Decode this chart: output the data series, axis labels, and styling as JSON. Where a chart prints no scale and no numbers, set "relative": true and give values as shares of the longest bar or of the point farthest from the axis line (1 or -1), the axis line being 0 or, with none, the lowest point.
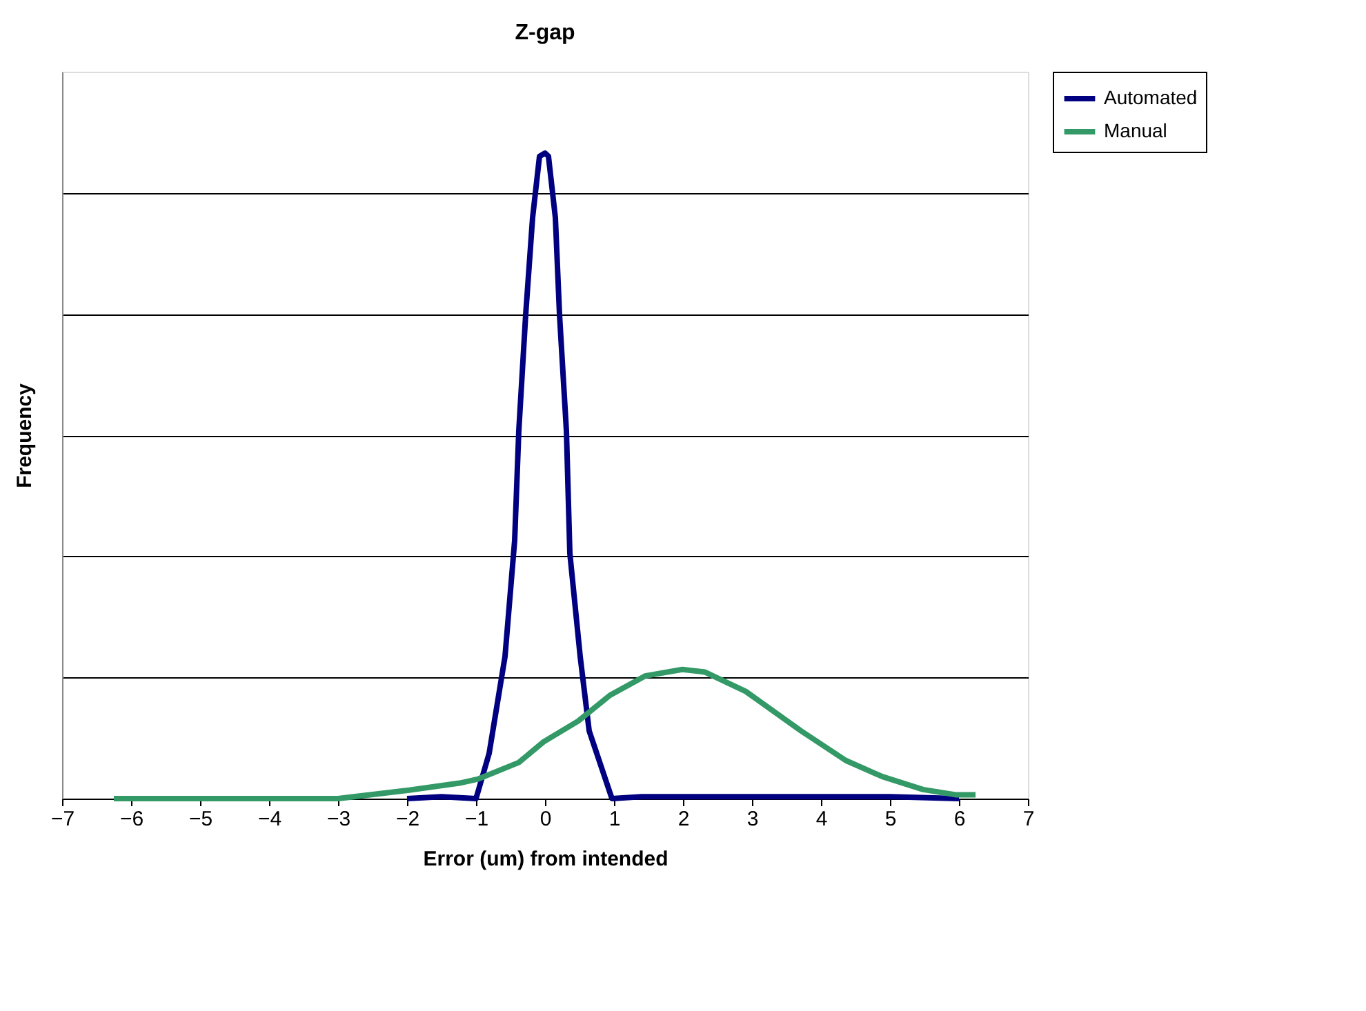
{
  "chart_data": {
    "type": "line",
    "title": "Z-gap",
    "xlabel": "Error (um) from intended",
    "ylabel": "Frequency",
    "relative": true,
    "xlim": [
      -7,
      7
    ],
    "xticks": [
      -7,
      -6,
      -5,
      -4,
      -3,
      -2,
      -1,
      0,
      1,
      2,
      3,
      4,
      5,
      6,
      7
    ],
    "grid": "y",
    "legend": "right",
    "marker": "none",
    "line_style": "solid",
    "series": [
      {
        "name": "Automated",
        "color": "#000080",
        "x": [
          -2,
          -1.5,
          -1.0,
          -0.81,
          -0.58,
          -0.44,
          -0.38,
          -0.28,
          -0.18,
          -0.08,
          0,
          0.05,
          0.15,
          0.21,
          0.31,
          0.36,
          0.51,
          0.64,
          0.97,
          1.4,
          2,
          3,
          4,
          5,
          6
        ],
        "values": [
          0,
          0.003,
          0,
          0.07,
          0.22,
          0.4,
          0.57,
          0.75,
          0.9,
          0.995,
          1.0,
          0.995,
          0.9,
          0.75,
          0.57,
          0.38,
          0.22,
          0.105,
          0,
          0.003,
          0.003,
          0.003,
          0.003,
          0.003,
          0
        ]
      },
      {
        "name": "Manual",
        "color": "#339966",
        "x": [
          -6.25,
          -5,
          -4,
          -3,
          -1.97,
          -1.24,
          -0.98,
          -0.38,
          -0.02,
          0.48,
          0.94,
          1.45,
          1.99,
          2.32,
          2.91,
          3.71,
          4.36,
          4.89,
          5.48,
          5.95,
          6.24
        ],
        "values": [
          0,
          0,
          0,
          0,
          0.013,
          0.024,
          0.03,
          0.056,
          0.088,
          0.12,
          0.16,
          0.19,
          0.2,
          0.196,
          0.166,
          0.105,
          0.059,
          0.034,
          0.014,
          0.006,
          0.006
        ]
      }
    ]
  }
}
